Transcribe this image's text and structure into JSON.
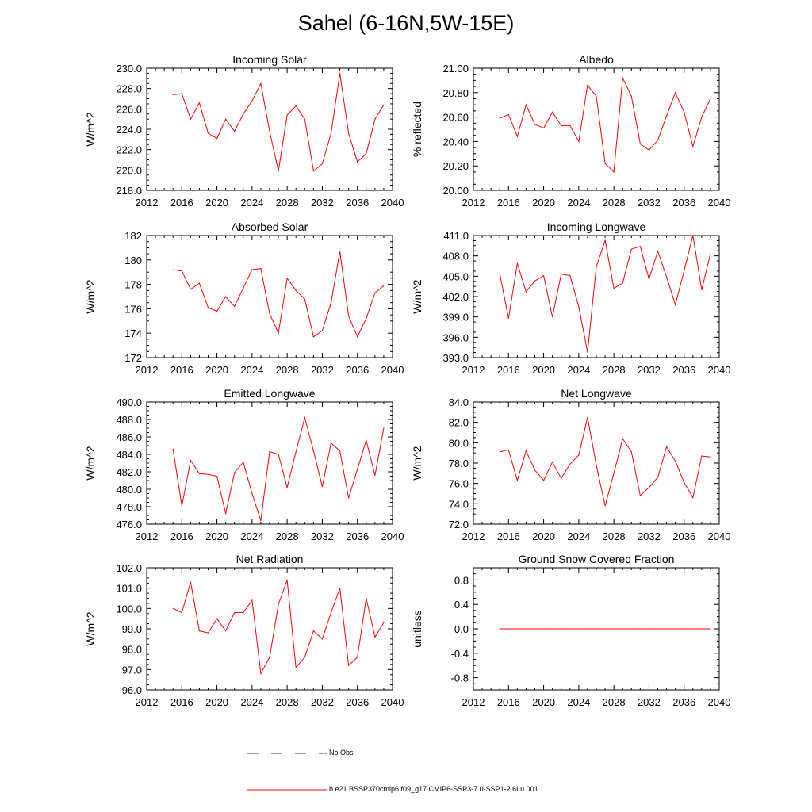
{
  "title": "Sahel (6-16N,5W-15E)",
  "legend": {
    "entries": [
      {
        "name": "No Obs",
        "color": "#3333aa",
        "dash": "dashed"
      },
      {
        "name": "b.e21.BSSP370cmip6.f09_g17.CMIP6-SSP3-7.0-SSP1-2.6Lu.001",
        "color": "#ff0000",
        "dash": "solid"
      }
    ]
  },
  "chart_data": [
    {
      "type": "line",
      "title": "Incoming Solar",
      "xlabel": "",
      "ylabel": "W/m^2",
      "xlim": [
        2012,
        2040
      ],
      "xticks": [
        2012,
        2016,
        2020,
        2024,
        2028,
        2032,
        2036,
        2040
      ],
      "ylim": [
        218,
        230
      ],
      "yticks": [
        218.0,
        220.0,
        222.0,
        224.0,
        226.0,
        228.0,
        230.0
      ],
      "ytick_labels": [
        "218.0",
        "220.0",
        "222.0",
        "224.0",
        "226.0",
        "228.0",
        "230.0"
      ],
      "x": [
        2015,
        2016,
        2017,
        2018,
        2019,
        2020,
        2021,
        2022,
        2023,
        2024,
        2025,
        2026,
        2027,
        2028,
        2029,
        2030,
        2031,
        2032,
        2033,
        2034,
        2035,
        2036,
        2037,
        2038,
        2039
      ],
      "series": [
        {
          "color": "#ff0000",
          "values": [
            227.4,
            227.5,
            225.0,
            226.6,
            223.6,
            223.1,
            225.0,
            223.8,
            225.5,
            226.8,
            228.5,
            223.8,
            219.9,
            225.4,
            226.3,
            225.0,
            219.9,
            220.6,
            223.6,
            229.5,
            223.6,
            220.8,
            221.6,
            225.0,
            226.4
          ]
        }
      ]
    },
    {
      "type": "line",
      "title": "Albedo",
      "xlabel": "",
      "ylabel": "% reflected",
      "xlim": [
        2012,
        2040
      ],
      "xticks": [
        2012,
        2016,
        2020,
        2024,
        2028,
        2032,
        2036,
        2040
      ],
      "ylim": [
        20.0,
        21.0
      ],
      "yticks": [
        20.0,
        20.2,
        20.4,
        20.6,
        20.8,
        21.0
      ],
      "ytick_labels": [
        "20.00",
        "20.20",
        "20.40",
        "20.60",
        "20.80",
        "21.00"
      ],
      "x": [
        2015,
        2016,
        2017,
        2018,
        2019,
        2020,
        2021,
        2022,
        2023,
        2024,
        2025,
        2026,
        2027,
        2028,
        2029,
        2030,
        2031,
        2032,
        2033,
        2034,
        2035,
        2036,
        2037,
        2038,
        2039
      ],
      "series": [
        {
          "color": "#ff0000",
          "values": [
            20.59,
            20.62,
            20.44,
            20.7,
            20.54,
            20.51,
            20.64,
            20.53,
            20.53,
            20.4,
            20.86,
            20.77,
            20.22,
            20.15,
            20.92,
            20.77,
            20.38,
            20.33,
            20.41,
            20.61,
            20.8,
            20.64,
            20.36,
            20.6,
            20.75
          ]
        }
      ]
    },
    {
      "type": "line",
      "title": "Absorbed Solar",
      "xlabel": "",
      "ylabel": "W/m^2",
      "xlim": [
        2012,
        2040
      ],
      "xticks": [
        2012,
        2016,
        2020,
        2024,
        2028,
        2032,
        2036,
        2040
      ],
      "ylim": [
        172,
        182
      ],
      "yticks": [
        172,
        174,
        176,
        178,
        180,
        182
      ],
      "ytick_labels": [
        "172",
        "174",
        "176",
        "178",
        "180",
        "182"
      ],
      "x": [
        2015,
        2016,
        2017,
        2018,
        2019,
        2020,
        2021,
        2022,
        2023,
        2024,
        2025,
        2026,
        2027,
        2028,
        2029,
        2030,
        2031,
        2032,
        2033,
        2034,
        2035,
        2036,
        2037,
        2038,
        2039
      ],
      "series": [
        {
          "color": "#ff0000",
          "values": [
            179.2,
            179.1,
            177.6,
            178.1,
            176.1,
            175.8,
            177.0,
            176.2,
            177.7,
            179.2,
            179.3,
            175.6,
            174.0,
            178.5,
            177.5,
            176.8,
            173.7,
            174.2,
            176.5,
            180.7,
            175.4,
            173.7,
            175.2,
            177.3,
            177.9
          ]
        }
      ]
    },
    {
      "type": "line",
      "title": "Incoming Longwave",
      "xlabel": "",
      "ylabel": "W/m^2",
      "xlim": [
        2012,
        2040
      ],
      "xticks": [
        2012,
        2016,
        2020,
        2024,
        2028,
        2032,
        2036,
        2040
      ],
      "ylim": [
        393,
        411
      ],
      "yticks": [
        393,
        396,
        399,
        402,
        405,
        408,
        411
      ],
      "ytick_labels": [
        "393.0",
        "396.0",
        "399.0",
        "402.0",
        "405.0",
        "408.0",
        "411.0"
      ],
      "x": [
        2015,
        2016,
        2017,
        2018,
        2019,
        2020,
        2021,
        2022,
        2023,
        2024,
        2025,
        2026,
        2027,
        2028,
        2029,
        2030,
        2031,
        2032,
        2033,
        2034,
        2035,
        2036,
        2037,
        2038,
        2039
      ],
      "series": [
        {
          "color": "#ff0000",
          "values": [
            405.4,
            398.8,
            406.9,
            402.7,
            404.3,
            405.1,
            399.0,
            405.3,
            405.1,
            400.5,
            393.8,
            406.4,
            410.3,
            403.2,
            404.0,
            409.0,
            409.4,
            404.6,
            408.7,
            404.9,
            400.8,
            405.8,
            411.0,
            403.0,
            408.3
          ]
        }
      ]
    },
    {
      "type": "line",
      "title": "Emitted Longwave",
      "xlabel": "",
      "ylabel": "W/m^2",
      "xlim": [
        2012,
        2040
      ],
      "xticks": [
        2012,
        2016,
        2020,
        2024,
        2028,
        2032,
        2036,
        2040
      ],
      "ylim": [
        476,
        490
      ],
      "yticks": [
        476,
        478,
        480,
        482,
        484,
        486,
        488,
        490
      ],
      "ytick_labels": [
        "476.0",
        "478.0",
        "480.0",
        "482.0",
        "484.0",
        "486.0",
        "488.0",
        "490.0"
      ],
      "x": [
        2015,
        2016,
        2017,
        2018,
        2019,
        2020,
        2021,
        2022,
        2023,
        2024,
        2025,
        2026,
        2027,
        2028,
        2029,
        2030,
        2031,
        2032,
        2033,
        2034,
        2035,
        2036,
        2037,
        2038,
        2039
      ],
      "series": [
        {
          "color": "#ff0000",
          "values": [
            484.6,
            478.1,
            483.3,
            481.8,
            481.7,
            481.5,
            477.2,
            481.9,
            483.1,
            479.5,
            476.4,
            484.3,
            484.0,
            480.2,
            484.3,
            488.2,
            484.4,
            480.3,
            485.3,
            484.4,
            479.0,
            482.3,
            485.6,
            481.6,
            487.0
          ]
        }
      ]
    },
    {
      "type": "line",
      "title": "Net Longwave",
      "xlabel": "",
      "ylabel": "W/m^2",
      "xlim": [
        2012,
        2040
      ],
      "xticks": [
        2012,
        2016,
        2020,
        2024,
        2028,
        2032,
        2036,
        2040
      ],
      "ylim": [
        72,
        84
      ],
      "yticks": [
        72,
        74,
        76,
        78,
        80,
        82,
        84
      ],
      "ytick_labels": [
        "72.0",
        "74.0",
        "76.0",
        "78.0",
        "80.0",
        "82.0",
        "84.0"
      ],
      "x": [
        2015,
        2016,
        2017,
        2018,
        2019,
        2020,
        2021,
        2022,
        2023,
        2024,
        2025,
        2026,
        2027,
        2028,
        2029,
        2030,
        2031,
        2032,
        2033,
        2034,
        2035,
        2036,
        2037,
        2038,
        2039
      ],
      "series": [
        {
          "color": "#ff0000",
          "values": [
            79.1,
            79.3,
            76.3,
            79.2,
            77.3,
            76.3,
            78.1,
            76.5,
            77.9,
            78.8,
            82.5,
            77.8,
            73.8,
            77.0,
            80.4,
            79.1,
            74.8,
            75.6,
            76.6,
            79.6,
            78.2,
            76.1,
            74.6,
            78.7,
            78.6
          ]
        }
      ]
    },
    {
      "type": "line",
      "title": "Net Radiation",
      "xlabel": "",
      "ylabel": "W/m^2",
      "xlim": [
        2012,
        2040
      ],
      "xticks": [
        2012,
        2016,
        2020,
        2024,
        2028,
        2032,
        2036,
        2040
      ],
      "ylim": [
        96,
        102
      ],
      "yticks": [
        96,
        97,
        98,
        99,
        100,
        101,
        102
      ],
      "ytick_labels": [
        "96.0",
        "97.0",
        "98.0",
        "99.0",
        "100.0",
        "101.0",
        "102.0"
      ],
      "x": [
        2015,
        2016,
        2017,
        2018,
        2019,
        2020,
        2021,
        2022,
        2023,
        2024,
        2025,
        2026,
        2027,
        2028,
        2029,
        2030,
        2031,
        2032,
        2033,
        2034,
        2035,
        2036,
        2037,
        2038,
        2039
      ],
      "series": [
        {
          "color": "#ff0000",
          "values": [
            100.0,
            99.8,
            101.3,
            98.9,
            98.8,
            99.5,
            98.9,
            99.8,
            99.8,
            100.4,
            96.8,
            97.6,
            100.2,
            101.4,
            97.1,
            97.6,
            98.9,
            98.5,
            99.8,
            101.0,
            97.2,
            97.6,
            100.5,
            98.6,
            99.3
          ]
        }
      ]
    },
    {
      "type": "line",
      "title": "Ground Snow Covered Fraction",
      "xlabel": "",
      "ylabel": "unitless",
      "xlim": [
        2012,
        2040
      ],
      "xticks": [
        2012,
        2016,
        2020,
        2024,
        2028,
        2032,
        2036,
        2040
      ],
      "ylim": [
        -1.0,
        1.0
      ],
      "yticks": [
        -0.8,
        -0.4,
        0.0,
        0.4,
        0.8
      ],
      "ytick_labels": [
        "-0.8",
        "-0.4",
        "0.0",
        "0.4",
        "0.8"
      ],
      "x": [
        2015,
        2016,
        2017,
        2018,
        2019,
        2020,
        2021,
        2022,
        2023,
        2024,
        2025,
        2026,
        2027,
        2028,
        2029,
        2030,
        2031,
        2032,
        2033,
        2034,
        2035,
        2036,
        2037,
        2038,
        2039
      ],
      "series": [
        {
          "color": "#ff0000",
          "values": [
            0,
            0,
            0,
            0,
            0,
            0,
            0,
            0,
            0,
            0,
            0,
            0,
            0,
            0,
            0,
            0,
            0,
            0,
            0,
            0,
            0,
            0,
            0,
            0,
            0
          ]
        }
      ]
    }
  ]
}
